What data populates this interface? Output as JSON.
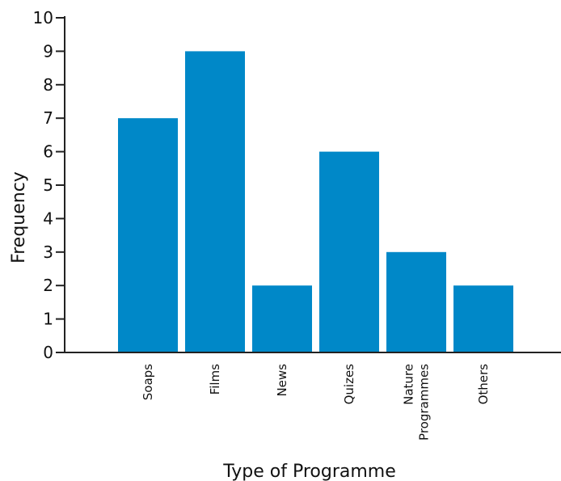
{
  "chart_data": {
    "type": "bar",
    "categories": [
      "Soaps",
      "Films",
      "News",
      "Quizes",
      "Nature Programmes",
      "Others"
    ],
    "category_label_lines": [
      [
        "Soaps"
      ],
      [
        "Films"
      ],
      [
        "News"
      ],
      [
        "Quizes"
      ],
      [
        "Nature",
        "Programmes"
      ],
      [
        "Others"
      ]
    ],
    "values": [
      7,
      9,
      2,
      6,
      3,
      2
    ],
    "xlabel": "Type of Programme",
    "ylabel": "Frequency",
    "ylim": [
      0,
      10
    ],
    "yticks": [
      0,
      1,
      2,
      3,
      4,
      5,
      6,
      7,
      8,
      9,
      10
    ],
    "grid": false,
    "bar_color": "#0088c8"
  }
}
